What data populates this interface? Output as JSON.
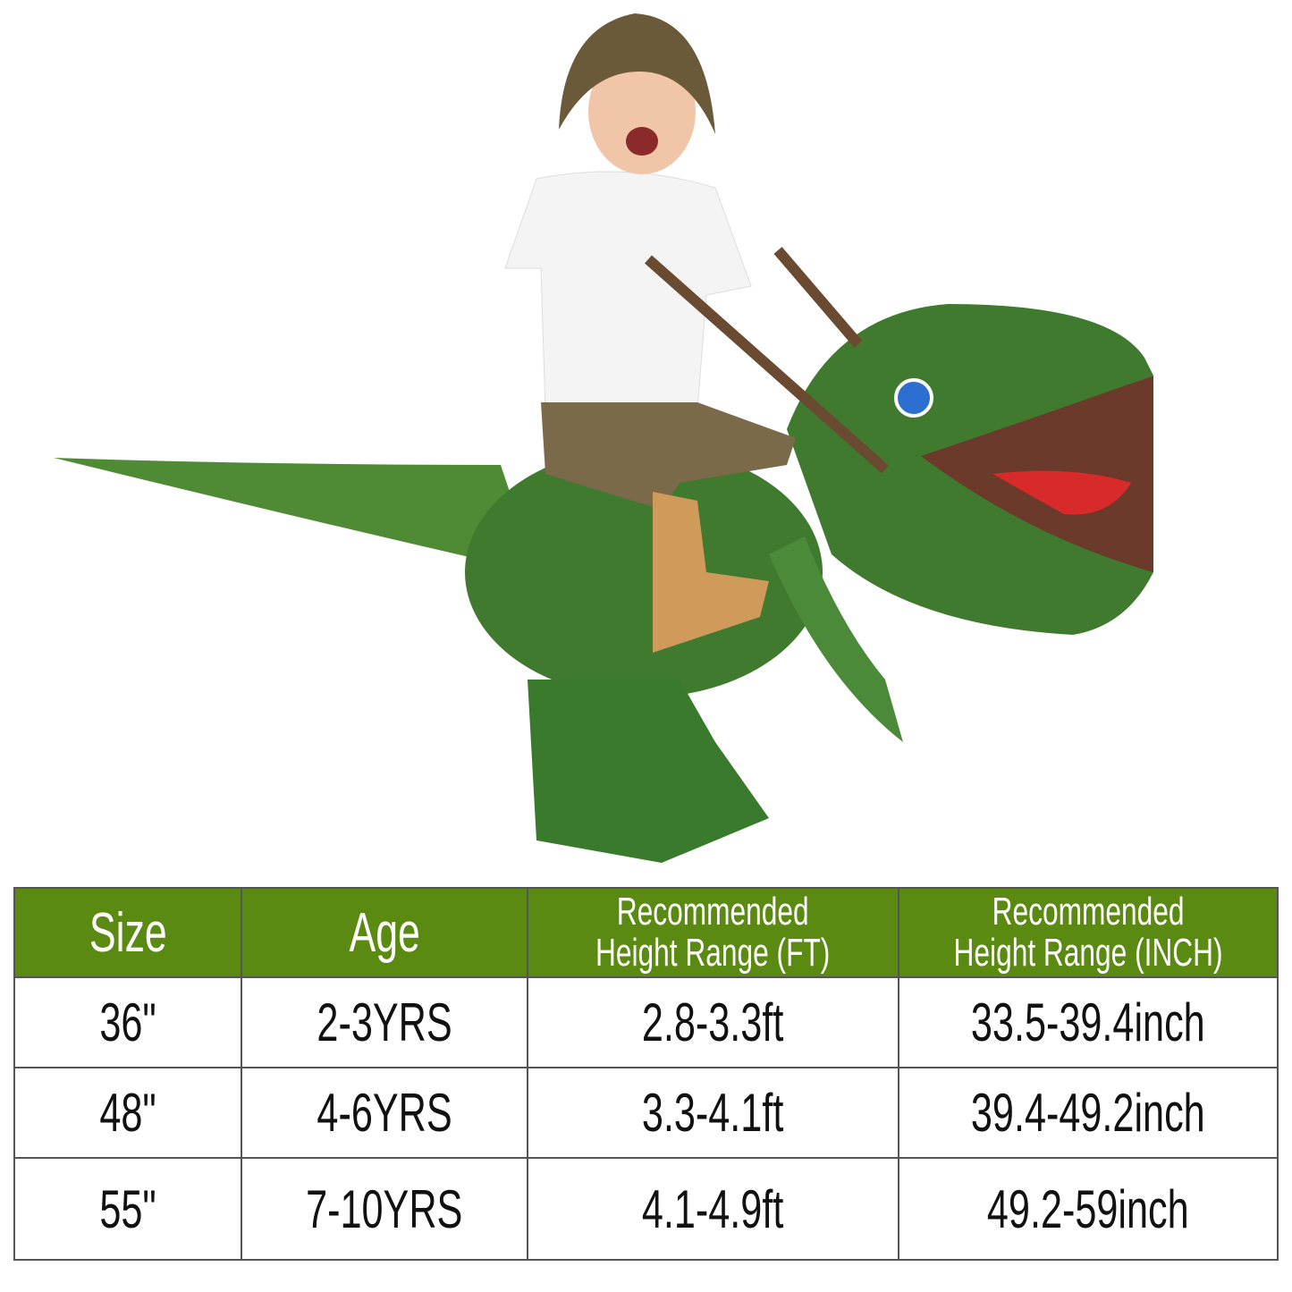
{
  "image": {
    "subject": "child riding inflatable green dinosaur costume",
    "colors": {
      "dino": "#3f7a2e",
      "header": "#5a8a12",
      "tongue": "#d82a2a"
    }
  },
  "size_table": {
    "headers": [
      "Size",
      "Age",
      "Recommended\nHeight Range (FT)",
      "Recommended\nHeight Range (INCH)"
    ],
    "header_lines": [
      [
        "Size"
      ],
      [
        "Age"
      ],
      [
        "Recommended",
        "Height Range (FT)"
      ],
      [
        "Recommended",
        "Height Range (INCH)"
      ]
    ],
    "rows": [
      [
        "36\"",
        "2-3YRS",
        "2.8-3.3ft",
        "33.5-39.4inch"
      ],
      [
        "48\"",
        "4-6YRS",
        "3.3-4.1ft",
        "39.4-49.2inch"
      ],
      [
        "55\"",
        "7-10YRS",
        "4.1-4.9ft",
        "49.2-59inch"
      ]
    ]
  }
}
